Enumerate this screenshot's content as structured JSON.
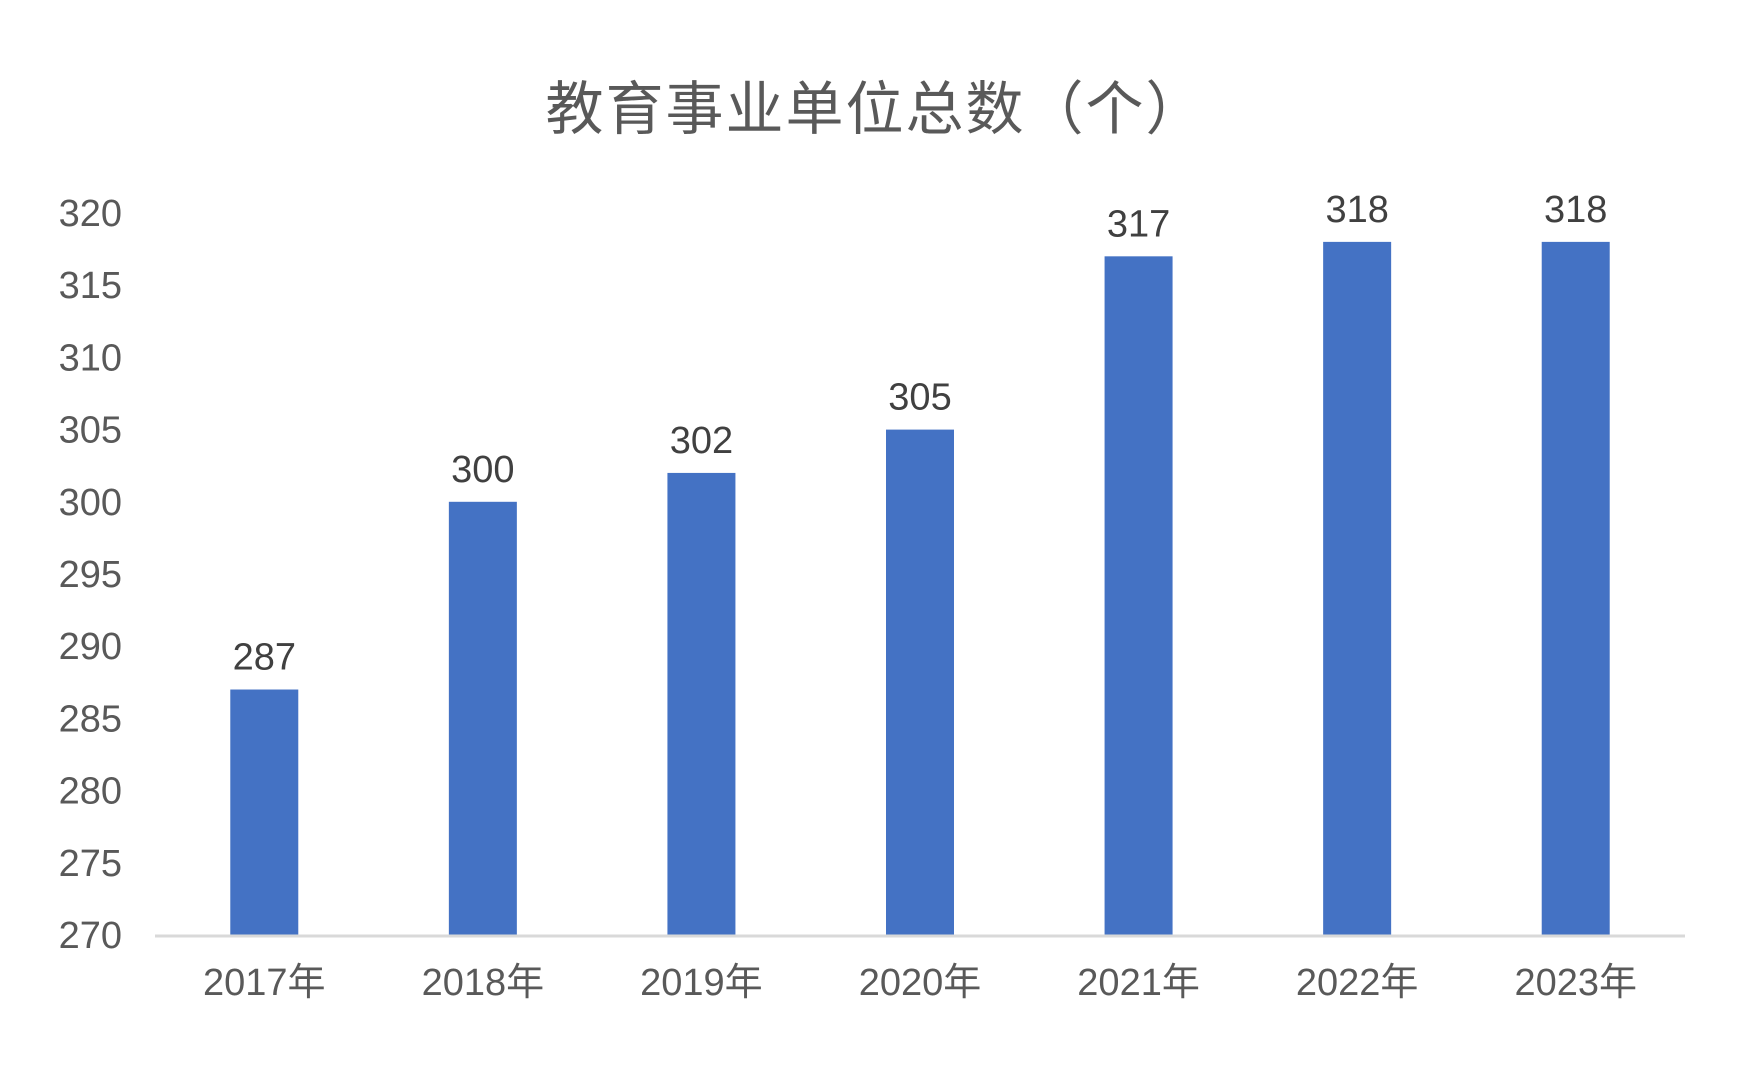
{
  "chart_data": {
    "type": "bar",
    "title": "教育事业单位总数（个）",
    "categories": [
      "2017年",
      "2018年",
      "2019年",
      "2020年",
      "2021年",
      "2022年",
      "2023年"
    ],
    "values": [
      287,
      300,
      302,
      305,
      317,
      318,
      318
    ],
    "data_labels": [
      "287",
      "300",
      "302",
      "305",
      "317",
      "318",
      "318"
    ],
    "ylim": [
      270,
      320
    ],
    "yticks": [
      270,
      275,
      280,
      285,
      290,
      295,
      300,
      305,
      310,
      315,
      320
    ],
    "ytick_labels": [
      "270",
      "275",
      "280",
      "285",
      "290",
      "295",
      "300",
      "305",
      "310",
      "315",
      "320"
    ],
    "xlabel": "",
    "ylabel": "",
    "grid": false,
    "legend": "none",
    "colors": {
      "bar": "#4472C4",
      "axis": "#D9D9D9",
      "text": "#595959"
    }
  }
}
